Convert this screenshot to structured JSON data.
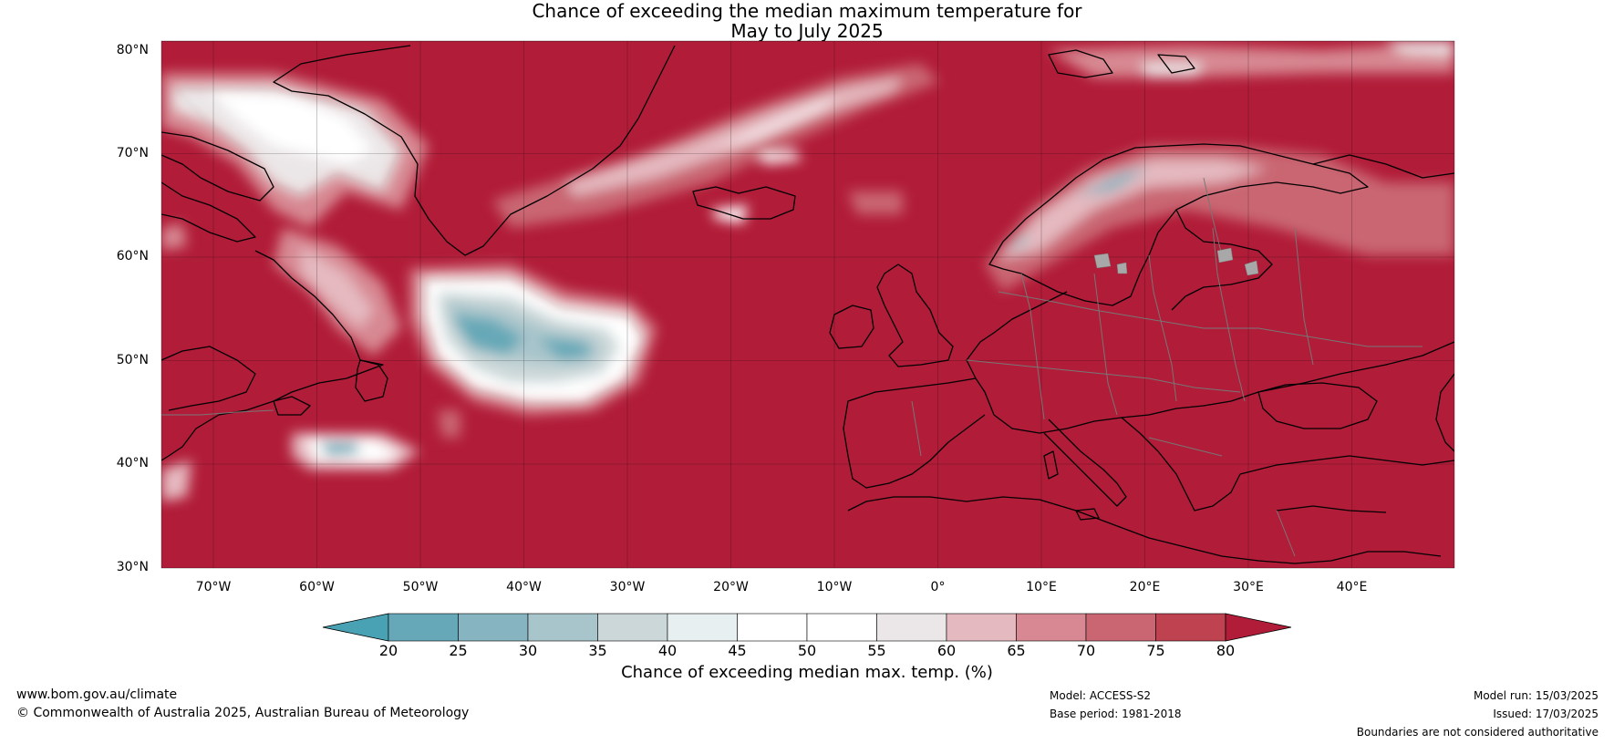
{
  "title": {
    "line1": "Chance of exceeding the median maximum temperature for",
    "line2": "May to July 2025"
  },
  "colors": {
    "above_80": "#b11c38",
    "lake": "#a8a8a8"
  },
  "lat_labels": [
    "80°N",
    "70°N",
    "60°N",
    "50°N",
    "40°N",
    "30°N"
  ],
  "lon_labels": [
    "70°W",
    "60°W",
    "50°W",
    "40°W",
    "30°W",
    "20°W",
    "10°W",
    "0°",
    "10°E",
    "20°E",
    "30°E",
    "40°E"
  ],
  "colorbar": {
    "label": "Chance of exceeding median max. temp. (%)",
    "ticks": [
      "20",
      "25",
      "30",
      "35",
      "40",
      "45",
      "50",
      "55",
      "60",
      "65",
      "70",
      "75",
      "80"
    ],
    "below_color": "#48a2b4",
    "above_color": "#b11c38",
    "colors": [
      "#66a8b7",
      "#86b4c0",
      "#a8c5cb",
      "#cbd7d8",
      "#e7eff0",
      "#ffffff",
      "#ffffff",
      "#ebe6e7",
      "#e5b9c0",
      "#d78892",
      "#c96672",
      "#be4250"
    ]
  },
  "footer": {
    "website": "www.bom.gov.au/climate",
    "copyright": "© Commonwealth of Australia 2025, Australian Bureau of Meteorology",
    "model": "Model: ACCESS-S2",
    "base_period": "Base period: 1981-2018",
    "model_run": "Model run: 15/03/2025",
    "issued": "Issued: 17/03/2025",
    "disclaimer": "Boundaries are not considered authoritative"
  }
}
